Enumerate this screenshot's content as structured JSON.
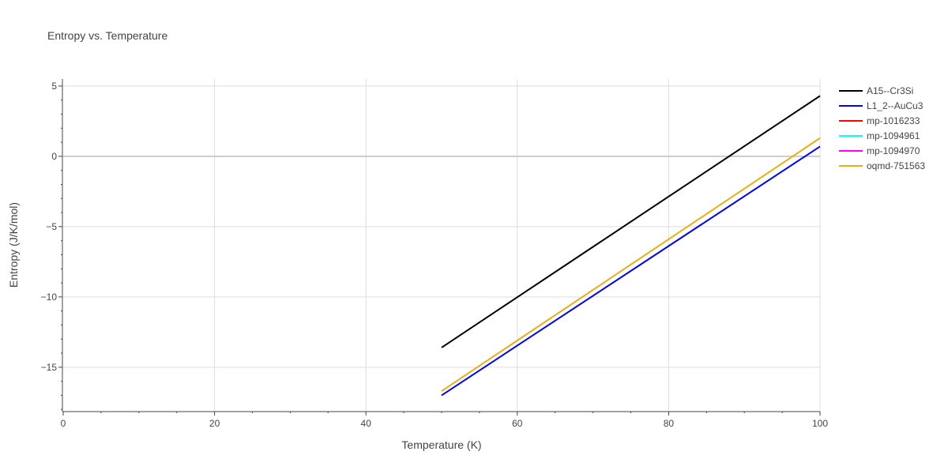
{
  "chart_data": {
    "type": "line",
    "title": "Entropy vs. Temperature",
    "xlabel": "Temperature (K)",
    "ylabel": "Entropy (J/K/mol)",
    "xlim": [
      0,
      100
    ],
    "ylim": [
      -18.1,
      5.5
    ],
    "x_ticks": [
      0,
      20,
      40,
      60,
      80,
      100
    ],
    "x_tick_labels": [
      "0",
      "20",
      "40",
      "60",
      "80",
      "100"
    ],
    "y_ticks": [
      5,
      0,
      -5,
      -10,
      -15
    ],
    "y_tick_labels": [
      "5",
      "0",
      "−5",
      "−10",
      "−15"
    ],
    "grid": true,
    "legend_position": "right",
    "series": [
      {
        "name": "A15--Cr3Si",
        "color": "#000000",
        "x": [
          50,
          100
        ],
        "y": [
          -13.6,
          4.3
        ]
      },
      {
        "name": "L1_2--AuCu3",
        "color": "#0000ff",
        "x": [
          50,
          100
        ],
        "y": [
          -17.0,
          0.7
        ]
      },
      {
        "name": "mp-1016233",
        "color": "#ff0000",
        "x": [],
        "y": []
      },
      {
        "name": "mp-1094961",
        "color": "#00ffff",
        "x": [],
        "y": []
      },
      {
        "name": "mp-1094970",
        "color": "#ff00ff",
        "x": [],
        "y": []
      },
      {
        "name": "oqmd-751563",
        "color": "#e6b012",
        "x": [
          50,
          100
        ],
        "y": [
          -16.7,
          1.3
        ]
      }
    ]
  }
}
